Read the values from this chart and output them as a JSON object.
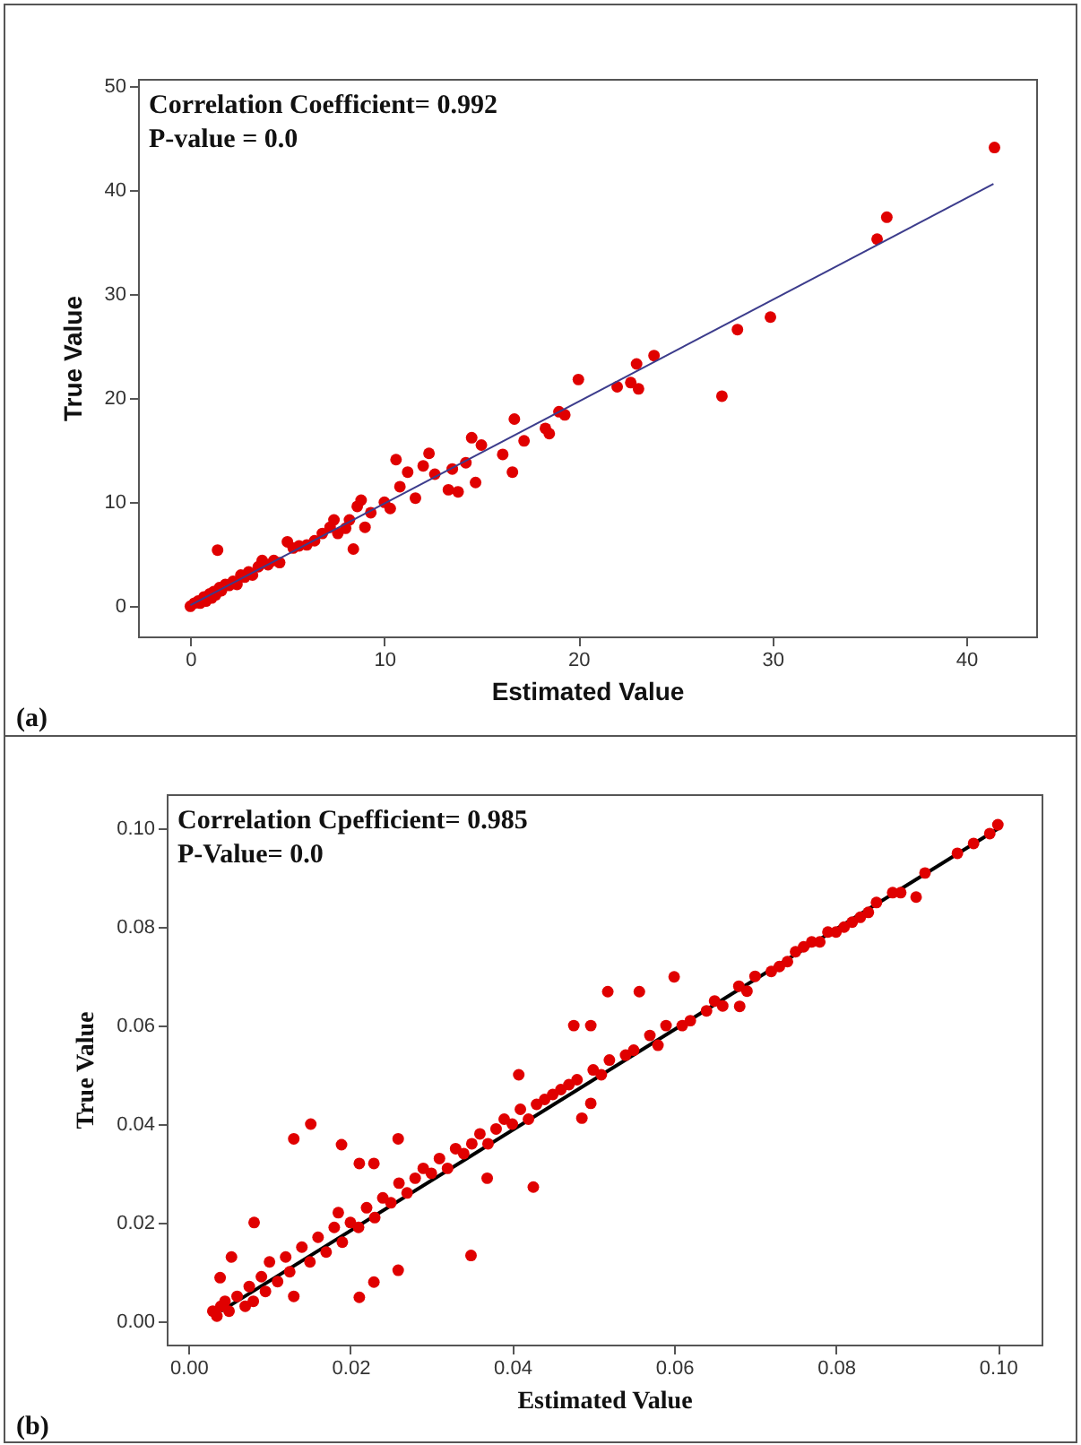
{
  "chart_data": [
    {
      "type": "scatter",
      "xlabel": "Estimated Value",
      "ylabel": "True Value",
      "annotations": [
        "Correlation Coefficient= 0.992",
        "P-value = 0.0",
        "(a)"
      ],
      "xlim": [
        -2.7,
        43.6
      ],
      "ylim": [
        -2.9,
        50.7
      ],
      "xticks": [
        0,
        10,
        20,
        30,
        40
      ],
      "yticks": [
        0,
        10,
        20,
        30,
        40,
        50
      ],
      "marker": "circle",
      "series": [
        {
          "color": "#e00000",
          "x": [
            0,
            0.2,
            0.4,
            0.5,
            0.7,
            0.8,
            1.0,
            1.1,
            1.2,
            1.3,
            1.4,
            1.5,
            1.6,
            1.8,
            2.0,
            2.2,
            2.4,
            2.6,
            2.8,
            3.0,
            3.2,
            3.5,
            3.7,
            4.0,
            4.3,
            4.6,
            5.0,
            5.3,
            5.6,
            6.0,
            6.4,
            6.8,
            7.2,
            7.4,
            7.6,
            8.0,
            8.2,
            8.4,
            8.6,
            8.8,
            9.0,
            9.3,
            10.0,
            10.3,
            10.6,
            10.8,
            11.2,
            11.6,
            12.0,
            12.3,
            12.6,
            13.3,
            13.5,
            13.8,
            14.2,
            14.5,
            14.7,
            15.0,
            16.1,
            16.6,
            16.7,
            17.2,
            18.3,
            18.5,
            19.0,
            19.3,
            20.0,
            22.0,
            22.7,
            23.0,
            23.1,
            23.9,
            27.4,
            28.2,
            29.9,
            35.4,
            35.9,
            41.45
          ],
          "values": [
            0,
            0.3,
            0.5,
            0.3,
            0.9,
            0.5,
            1.2,
            0.8,
            1.4,
            1.1,
            5.4,
            1.8,
            1.5,
            2.1,
            2.0,
            2.4,
            2.1,
            3.0,
            2.8,
            3.3,
            3.0,
            3.8,
            4.4,
            4.0,
            4.4,
            4.2,
            6.2,
            5.6,
            5.8,
            5.9,
            6.3,
            7.0,
            7.6,
            8.3,
            7.0,
            7.5,
            8.3,
            5.5,
            9.6,
            10.2,
            7.6,
            9.0,
            10.0,
            9.4,
            14.1,
            11.5,
            12.9,
            10.4,
            13.5,
            14.7,
            12.7,
            11.2,
            13.2,
            11.0,
            13.8,
            16.2,
            11.9,
            15.5,
            14.6,
            12.9,
            18.0,
            15.9,
            17.1,
            16.6,
            18.7,
            18.4,
            21.8,
            21.1,
            21.5,
            23.3,
            20.9,
            24.1,
            20.2,
            26.6,
            27.8,
            35.3,
            37.4,
            44.1
          ]
        },
        {
          "type": "line",
          "marker": "none",
          "color": "#3c3c8c",
          "x": [
            0,
            41.4
          ],
          "values": [
            0.1,
            40.6
          ]
        }
      ]
    },
    {
      "type": "scatter",
      "xlabel": "Estimated Value",
      "ylabel": "True Value",
      "annotations": [
        "Correlation Cpefficient= 0.985",
        "P-Value= 0.0",
        "(b)"
      ],
      "xlim": [
        -0.0027,
        0.1054
      ],
      "ylim": [
        -0.0048,
        0.107
      ],
      "xticks": [
        {
          "value": 0,
          "label": "0.00"
        },
        {
          "value": 0.02,
          "label": "0.02"
        },
        {
          "value": 0.04,
          "label": "0.04"
        },
        {
          "value": 0.06,
          "label": "0.06"
        },
        {
          "value": 0.08,
          "label": "0.08"
        },
        {
          "value": 0.1,
          "label": "0.10"
        }
      ],
      "yticks": [
        {
          "value": 0,
          "label": "0.00"
        },
        {
          "value": 0.02,
          "label": "0.02"
        },
        {
          "value": 0.04,
          "label": "0.04"
        },
        {
          "value": 0.06,
          "label": "0.06"
        },
        {
          "value": 0.08,
          "label": "0.08"
        },
        {
          "value": 0.1,
          "label": "0.10"
        }
      ],
      "marker": "circle",
      "series": [
        {
          "type": "line",
          "marker": "none",
          "color": "#000000",
          "x": [
            0.004,
            0.1
          ],
          "values": [
            0.002,
            0.1
          ]
        },
        {
          "color": "#e00000",
          "x": [
            0.003,
            0.0035,
            0.004,
            0.0045,
            0.005,
            0.006,
            0.007,
            0.0075,
            0.008,
            0.009,
            0.0095,
            0.01,
            0.011,
            0.012,
            0.0125,
            0.013,
            0.014,
            0.015,
            0.016,
            0.017,
            0.018,
            0.0185,
            0.019,
            0.02,
            0.021,
            0.022,
            0.023,
            0.024,
            0.025,
            0.026,
            0.027,
            0.028,
            0.029,
            0.03,
            0.031,
            0.032,
            0.033,
            0.034,
            0.035,
            0.036,
            0.037,
            0.038,
            0.039,
            0.04,
            0.041,
            0.042,
            0.043,
            0.044,
            0.045,
            0.046,
            0.047,
            0.048,
            0.05,
            0.051,
            0.052,
            0.054,
            0.055,
            0.057,
            0.058,
            0.059,
            0.061,
            0.062,
            0.064,
            0.065,
            0.066,
            0.068,
            0.069,
            0.07,
            0.072,
            0.073,
            0.074,
            0.075,
            0.076,
            0.077,
            0.078,
            0.079,
            0.08,
            0.081,
            0.082,
            0.083,
            0.084,
            0.085,
            0.087,
            0.088,
            0.091,
            0.095,
            0.097,
            0.099,
            0.1,
            0.013,
            0.0151,
            0.0189,
            0.0211,
            0.0229,
            0.0259,
            0.0349,
            0.0426,
            0.0369,
            0.0408,
            0.0081,
            0.0211,
            0.0229,
            0.0259,
            0.0053,
            0.0039,
            0.0476,
            0.06,
            0.0518,
            0.0557,
            0.0681,
            0.0899,
            0.0486,
            0.0497,
            0.0497
          ],
          "values": [
            0.002,
            0.001,
            0.003,
            0.004,
            0.002,
            0.005,
            0.003,
            0.007,
            0.004,
            0.009,
            0.006,
            0.012,
            0.008,
            0.013,
            0.01,
            0.005,
            0.015,
            0.012,
            0.017,
            0.014,
            0.019,
            0.022,
            0.016,
            0.02,
            0.019,
            0.023,
            0.021,
            0.025,
            0.024,
            0.028,
            0.026,
            0.029,
            0.031,
            0.03,
            0.033,
            0.031,
            0.035,
            0.034,
            0.036,
            0.038,
            0.036,
            0.039,
            0.041,
            0.04,
            0.043,
            0.041,
            0.044,
            0.045,
            0.046,
            0.047,
            0.048,
            0.049,
            0.051,
            0.05,
            0.053,
            0.054,
            0.055,
            0.058,
            0.056,
            0.06,
            0.06,
            0.061,
            0.063,
            0.065,
            0.064,
            0.068,
            0.067,
            0.07,
            0.071,
            0.072,
            0.073,
            0.075,
            0.076,
            0.077,
            0.077,
            0.079,
            0.079,
            0.08,
            0.081,
            0.082,
            0.083,
            0.085,
            0.087,
            0.087,
            0.091,
            0.095,
            0.097,
            0.099,
            0.1008,
            0.037,
            0.04,
            0.0358,
            0.032,
            0.032,
            0.037,
            0.0133,
            0.0272,
            0.029,
            0.05,
            0.02,
            0.0048,
            0.0079,
            0.0103,
            0.013,
            0.0088,
            0.06,
            0.0699,
            0.0669,
            0.0669,
            0.0639,
            0.0861,
            0.0412,
            0.0442,
            0.06
          ]
        }
      ]
    }
  ]
}
